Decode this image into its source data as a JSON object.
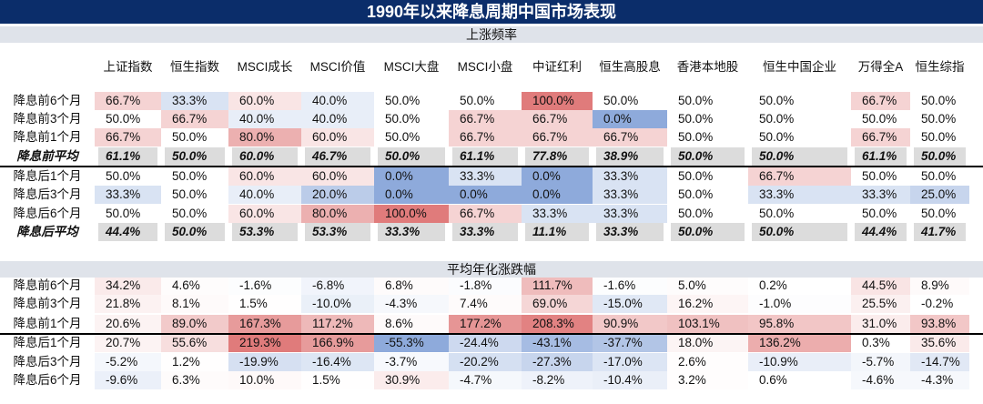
{
  "title": "1990年以来降息周期中国市场表现",
  "columns": [
    "上证指数",
    "恒生指数",
    "MSCI成长",
    "MSCI价值",
    "MSCI大盘",
    "MSCI小盘",
    "中证红利",
    "恒生高股息",
    "香港本地股",
    "恒生中国企业",
    "万得全A",
    "恒生综指"
  ],
  "up_ratio": {
    "header": "上涨频率",
    "rows": [
      {
        "label": "降息前6个月",
        "avg": false,
        "values": [
          "66.7%",
          "33.3%",
          "60.0%",
          "40.0%",
          "50.0%",
          "50.0%",
          "100.0%",
          "50.0%",
          "50.0%",
          "50.0%",
          "66.7%",
          "50.0%"
        ]
      },
      {
        "label": "降息前3个月",
        "avg": false,
        "values": [
          "50.0%",
          "66.7%",
          "40.0%",
          "40.0%",
          "50.0%",
          "66.7%",
          "66.7%",
          "0.0%",
          "50.0%",
          "50.0%",
          "50.0%",
          "50.0%"
        ]
      },
      {
        "label": "降息前1个月",
        "avg": false,
        "values": [
          "66.7%",
          "50.0%",
          "80.0%",
          "60.0%",
          "50.0%",
          "66.7%",
          "66.7%",
          "66.7%",
          "50.0%",
          "50.0%",
          "66.7%",
          "50.0%"
        ]
      },
      {
        "label": "降息前平均",
        "avg": true,
        "values": [
          "61.1%",
          "50.0%",
          "60.0%",
          "46.7%",
          "50.0%",
          "61.1%",
          "77.8%",
          "38.9%",
          "50.0%",
          "50.0%",
          "61.1%",
          "50.0%"
        ]
      },
      {
        "label": "降息后1个月",
        "avg": false,
        "values": [
          "50.0%",
          "50.0%",
          "60.0%",
          "60.0%",
          "0.0%",
          "33.3%",
          "0.0%",
          "33.3%",
          "50.0%",
          "66.7%",
          "50.0%",
          "50.0%"
        ]
      },
      {
        "label": "降息后3个月",
        "avg": false,
        "values": [
          "33.3%",
          "50.0%",
          "40.0%",
          "20.0%",
          "0.0%",
          "0.0%",
          "0.0%",
          "33.3%",
          "50.0%",
          "33.3%",
          "33.3%",
          "25.0%"
        ]
      },
      {
        "label": "降息后6个月",
        "avg": false,
        "values": [
          "50.0%",
          "50.0%",
          "60.0%",
          "80.0%",
          "100.0%",
          "66.7%",
          "33.3%",
          "33.3%",
          "50.0%",
          "50.0%",
          "50.0%",
          "50.0%"
        ]
      },
      {
        "label": "降息后平均",
        "avg": true,
        "values": [
          "44.4%",
          "50.0%",
          "53.3%",
          "53.3%",
          "33.3%",
          "33.3%",
          "11.1%",
          "33.3%",
          "50.0%",
          "50.0%",
          "44.4%",
          "41.7%"
        ]
      }
    ]
  },
  "annual_return": {
    "header": "平均年化涨跌幅",
    "rows": [
      {
        "label": "降息前6个月",
        "values": [
          "34.2%",
          "4.6%",
          "-1.6%",
          "-6.8%",
          "6.8%",
          "-1.8%",
          "111.7%",
          "-1.6%",
          "5.0%",
          "0.2%",
          "44.5%",
          "8.9%"
        ]
      },
      {
        "label": "降息前3个月",
        "values": [
          "21.8%",
          "8.1%",
          "1.5%",
          "-10.0%",
          "-4.3%",
          "7.4%",
          "69.0%",
          "-15.0%",
          "16.2%",
          "-1.0%",
          "25.5%",
          "-0.2%"
        ]
      },
      {
        "label": "降息前1个月",
        "values": [
          "20.6%",
          "89.0%",
          "167.3%",
          "117.2%",
          "8.6%",
          "177.2%",
          "208.3%",
          "90.9%",
          "103.1%",
          "95.8%",
          "31.0%",
          "93.8%"
        ]
      },
      {
        "label": "降息后1个月",
        "values": [
          "20.7%",
          "55.6%",
          "219.3%",
          "166.9%",
          "-55.3%",
          "-24.4%",
          "-43.1%",
          "-37.7%",
          "18.0%",
          "136.2%",
          "0.3%",
          "35.6%"
        ]
      },
      {
        "label": "降息后3个月",
        "values": [
          "-5.2%",
          "1.2%",
          "-19.9%",
          "-16.4%",
          "-3.7%",
          "-20.2%",
          "-27.3%",
          "-17.0%",
          "2.6%",
          "-10.9%",
          "-5.7%",
          "-14.7%"
        ]
      },
      {
        "label": "降息后6个月",
        "values": [
          "-9.6%",
          "6.3%",
          "10.0%",
          "1.5%",
          "30.9%",
          "-4.7%",
          "-8.2%",
          "-10.4%",
          "3.2%",
          "0.6%",
          "-4.6%",
          "-4.3%"
        ]
      }
    ]
  },
  "colors": {
    "header_bg": "#0b2d6a",
    "section_bg": "#dfe3ea",
    "avg_bg": "#dcdcdc",
    "neg_strong": "#8eaadb",
    "pos_strong": "#e07b7b"
  },
  "chart_data": [
    {
      "type": "table",
      "title": "上涨频率",
      "columns": [
        "上证指数",
        "恒生指数",
        "MSCI成长",
        "MSCI价值",
        "MSCI大盘",
        "MSCI小盘",
        "中证红利",
        "恒生高股息",
        "香港本地股",
        "恒生中国企业",
        "万得全A",
        "恒生综指"
      ],
      "rows": [
        "降息前6个月",
        "降息前3个月",
        "降息前1个月",
        "降息前平均",
        "降息后1个月",
        "降息后3个月",
        "降息后6个月",
        "降息后平均"
      ],
      "values": [
        [
          66.7,
          33.3,
          60.0,
          40.0,
          50.0,
          50.0,
          100.0,
          50.0,
          50.0,
          50.0,
          66.7,
          50.0
        ],
        [
          50.0,
          66.7,
          40.0,
          40.0,
          50.0,
          66.7,
          66.7,
          0.0,
          50.0,
          50.0,
          50.0,
          50.0
        ],
        [
          66.7,
          50.0,
          80.0,
          60.0,
          50.0,
          66.7,
          66.7,
          66.7,
          50.0,
          50.0,
          66.7,
          50.0
        ],
        [
          61.1,
          50.0,
          60.0,
          46.7,
          50.0,
          61.1,
          77.8,
          38.9,
          50.0,
          50.0,
          61.1,
          50.0
        ],
        [
          50.0,
          50.0,
          60.0,
          60.0,
          0.0,
          33.3,
          0.0,
          33.3,
          50.0,
          66.7,
          50.0,
          50.0
        ],
        [
          33.3,
          50.0,
          40.0,
          20.0,
          0.0,
          0.0,
          0.0,
          33.3,
          50.0,
          33.3,
          33.3,
          25.0
        ],
        [
          50.0,
          50.0,
          60.0,
          80.0,
          100.0,
          66.7,
          33.3,
          33.3,
          50.0,
          50.0,
          50.0,
          50.0
        ],
        [
          44.4,
          50.0,
          53.3,
          53.3,
          33.3,
          33.3,
          11.1,
          33.3,
          50.0,
          50.0,
          44.4,
          41.7
        ]
      ]
    },
    {
      "type": "table",
      "title": "平均年化涨跌幅",
      "columns": [
        "上证指数",
        "恒生指数",
        "MSCI成长",
        "MSCI价值",
        "MSCI大盘",
        "MSCI小盘",
        "中证红利",
        "恒生高股息",
        "香港本地股",
        "恒生中国企业",
        "万得全A",
        "恒生综指"
      ],
      "rows": [
        "降息前6个月",
        "降息前3个月",
        "降息前1个月",
        "降息后1个月",
        "降息后3个月",
        "降息后6个月"
      ],
      "values": [
        [
          34.2,
          4.6,
          -1.6,
          -6.8,
          6.8,
          -1.8,
          111.7,
          -1.6,
          5.0,
          0.2,
          44.5,
          8.9
        ],
        [
          21.8,
          8.1,
          1.5,
          -10.0,
          -4.3,
          7.4,
          69.0,
          -15.0,
          16.2,
          -1.0,
          25.5,
          -0.2
        ],
        [
          20.6,
          89.0,
          167.3,
          117.2,
          8.6,
          177.2,
          208.3,
          90.9,
          103.1,
          95.8,
          31.0,
          93.8
        ],
        [
          20.7,
          55.6,
          219.3,
          166.9,
          -55.3,
          -24.4,
          -43.1,
          -37.7,
          18.0,
          136.2,
          0.3,
          35.6
        ],
        [
          -5.2,
          1.2,
          -19.9,
          -16.4,
          -3.7,
          -20.2,
          -27.3,
          -17.0,
          2.6,
          -10.9,
          -5.7,
          -14.7
        ],
        [
          -9.6,
          6.3,
          10.0,
          1.5,
          30.9,
          -4.7,
          -8.2,
          -10.4,
          3.2,
          0.6,
          -4.6,
          -4.3
        ]
      ]
    }
  ]
}
